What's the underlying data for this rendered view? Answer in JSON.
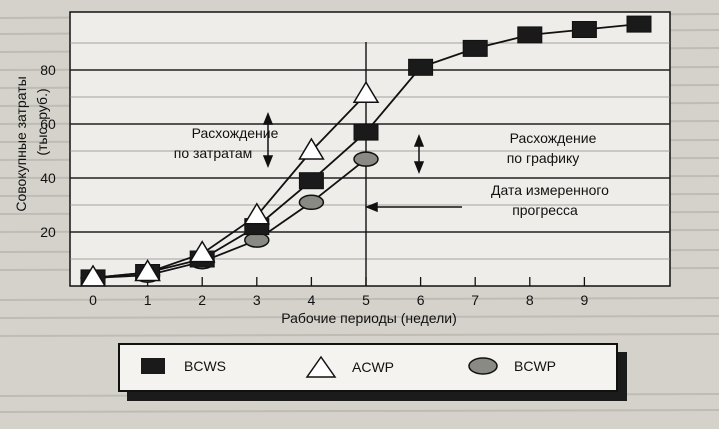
{
  "chart_data": {
    "type": "line",
    "xlabel": "Рабочие периоды (недели)",
    "ylabel_line1": "Совокупные затраты",
    "ylabel_line2": "(тыс. руб.)",
    "x_ticks": [
      "0",
      "1",
      "2",
      "3",
      "4",
      "5",
      "6",
      "7",
      "8",
      "9"
    ],
    "y_ticks": [
      "20",
      "40",
      "60",
      "80"
    ],
    "xlim": [
      0,
      10
    ],
    "ylim": [
      0,
      100
    ],
    "series": [
      {
        "name": "BCWS",
        "marker": "square",
        "color": "#1a1a1a",
        "x": [
          0,
          1,
          2,
          3,
          4,
          5,
          6,
          7,
          8,
          9,
          10
        ],
        "y": [
          3,
          5,
          10,
          22,
          39,
          57,
          81,
          88,
          93,
          95,
          97
        ]
      },
      {
        "name": "ACWP",
        "marker": "triangle",
        "color": "#ffffff",
        "x": [
          0,
          1,
          2,
          3,
          4,
          5
        ],
        "y": [
          3,
          5,
          12,
          26,
          50,
          71
        ]
      },
      {
        "name": "BCWP",
        "marker": "ellipse",
        "color": "#8a8a85",
        "x": [
          0,
          1,
          2,
          3,
          4,
          5
        ],
        "y": [
          3,
          4,
          9,
          17,
          31,
          47
        ]
      }
    ],
    "annotations": {
      "cost_variance": [
        "Расхождение",
        "по затратам"
      ],
      "schedule_variance": [
        "Расхождение",
        "по графику"
      ],
      "status_date": [
        "Дата измеренного",
        "прогресса"
      ]
    },
    "grid": "horizontal",
    "legend_position": "bottom"
  }
}
